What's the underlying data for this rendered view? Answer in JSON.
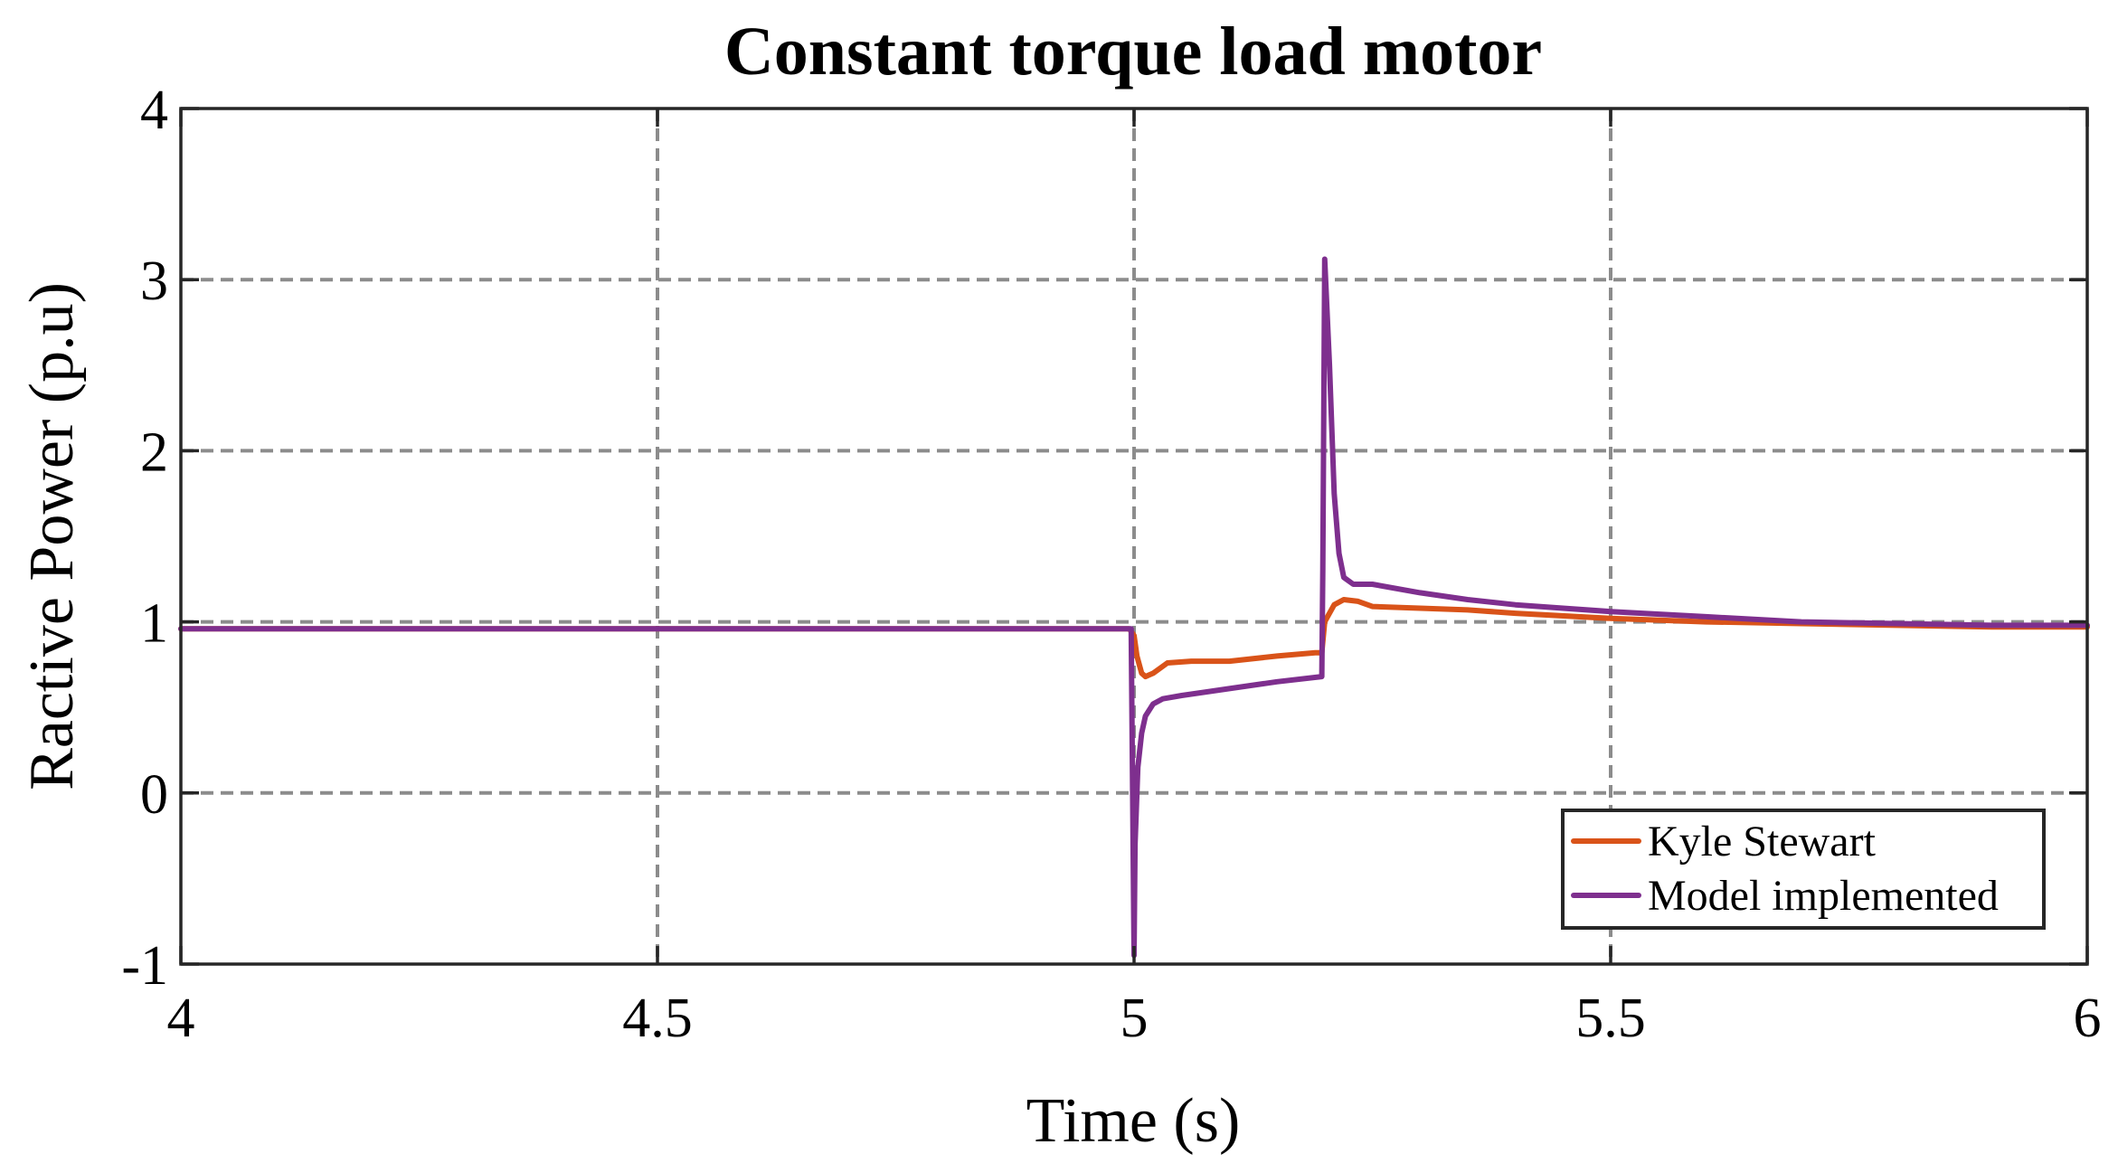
{
  "chart_data": {
    "type": "line",
    "title": "Constant torque load motor",
    "xlabel": "Time (s)",
    "ylabel": "Ractive Power (p.u)",
    "xlim": [
      4,
      6
    ],
    "ylim": [
      -1,
      4
    ],
    "xticks": [
      4,
      4.5,
      5,
      5.5,
      6
    ],
    "xtick_labels": [
      "4",
      "4.5",
      "5",
      "5.5",
      "6"
    ],
    "yticks": [
      -1,
      0,
      1,
      2,
      3,
      4
    ],
    "ytick_labels": [
      "-1",
      "0",
      "1",
      "2",
      "3",
      "4"
    ],
    "grid": true,
    "legend_position": "bottom-right",
    "series": [
      {
        "name": "Kyle Stewart",
        "color": "#D95319",
        "x": [
          4.0,
          4.5,
          4.995,
          5.0,
          5.003,
          5.008,
          5.012,
          5.02,
          5.035,
          5.06,
          5.1,
          5.15,
          5.19,
          5.197,
          5.2,
          5.21,
          5.22,
          5.235,
          5.25,
          5.3,
          5.35,
          5.4,
          5.5,
          5.6,
          5.7,
          5.8,
          5.9,
          6.0
        ],
        "y": [
          0.96,
          0.96,
          0.96,
          0.92,
          0.8,
          0.7,
          0.68,
          0.7,
          0.76,
          0.77,
          0.77,
          0.8,
          0.82,
          0.82,
          1.0,
          1.1,
          1.13,
          1.12,
          1.09,
          1.08,
          1.07,
          1.05,
          1.02,
          1.0,
          0.99,
          0.98,
          0.97,
          0.97
        ]
      },
      {
        "name": "Model implemented",
        "color": "#7E2F8E",
        "x": [
          4.0,
          4.5,
          4.997,
          5.0,
          5.001,
          5.004,
          5.008,
          5.012,
          5.02,
          5.03,
          5.05,
          5.1,
          5.15,
          5.197,
          5.198,
          5.2,
          5.205,
          5.21,
          5.215,
          5.22,
          5.23,
          5.25,
          5.3,
          5.35,
          5.4,
          5.45,
          5.5,
          5.6,
          5.7,
          5.8,
          5.9,
          6.0
        ],
        "y": [
          0.96,
          0.96,
          0.96,
          -0.95,
          -0.3,
          0.15,
          0.35,
          0.45,
          0.52,
          0.55,
          0.57,
          0.61,
          0.65,
          0.68,
          1.3,
          3.12,
          2.5,
          1.75,
          1.4,
          1.26,
          1.22,
          1.22,
          1.17,
          1.13,
          1.1,
          1.08,
          1.06,
          1.03,
          1.0,
          0.99,
          0.98,
          0.98
        ]
      }
    ]
  }
}
